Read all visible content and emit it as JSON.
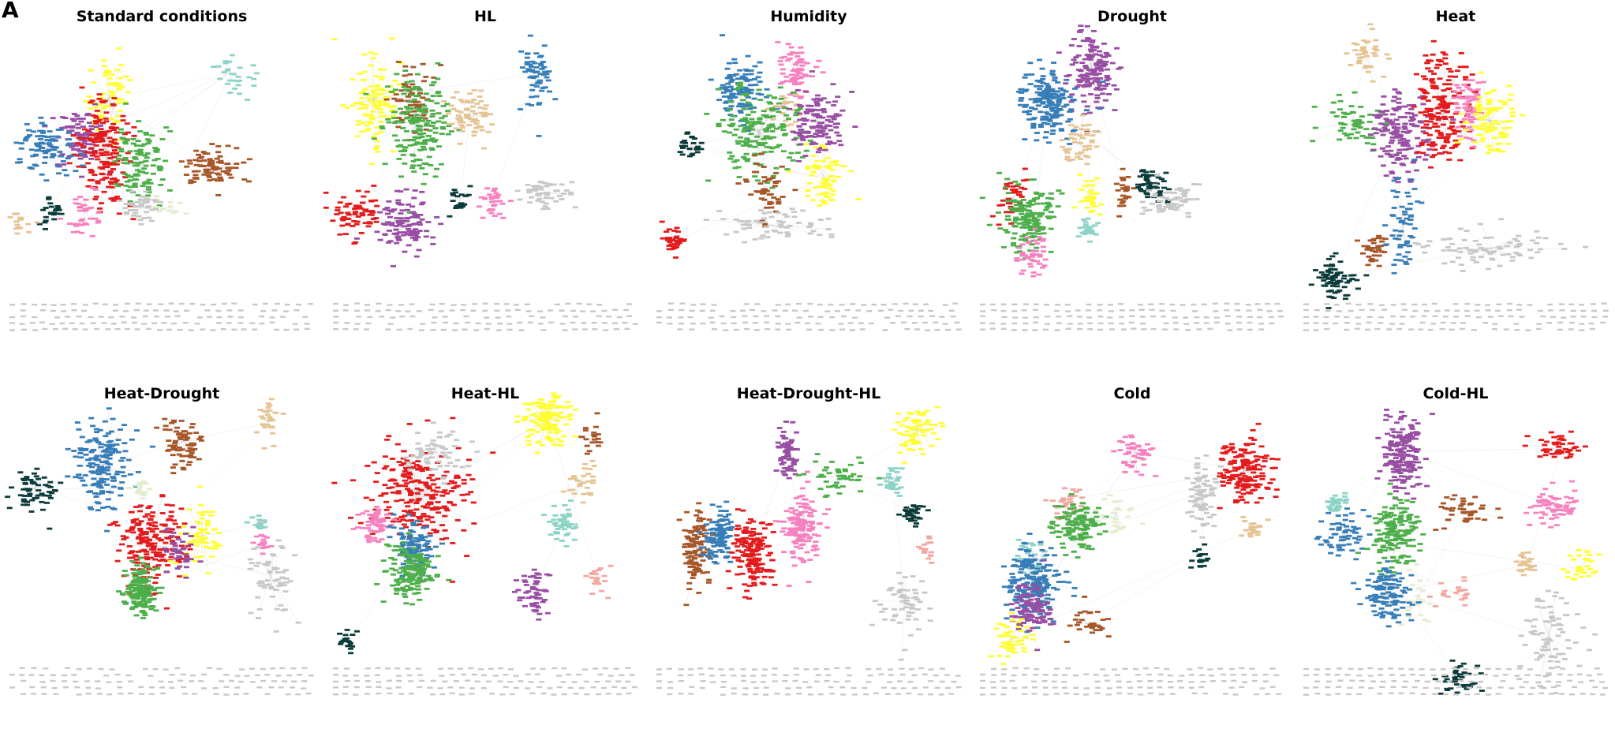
{
  "figure": {
    "panel_label": "A",
    "type": "network-graph-grid",
    "node_color_palette": {
      "red": "#e41a1c",
      "blue": "#377eb8",
      "green": "#4daf4a",
      "purple": "#984ea3",
      "brown": "#a65628",
      "yellow": "#ffff33",
      "pink": "#f781bf",
      "tan": "#e5c494",
      "teal": "#8dd3c7",
      "dark-teal": "#0b3b3a",
      "salmon": "#f4a6a0",
      "pale-green": "#e3eed0",
      "gray": "#c8c8c8",
      "edge": "#c8c8c8"
    }
  },
  "panels": [
    {
      "title": "Standard conditions",
      "clusters": [
        "yellow",
        "teal",
        "purple",
        "red",
        "blue",
        "green",
        "brown",
        "dark-teal",
        "pink",
        "tan",
        "pale-green",
        "gray"
      ]
    },
    {
      "title": "HL",
      "clusters": [
        "yellow",
        "brown",
        "green",
        "tan",
        "blue",
        "red",
        "purple",
        "dark-teal",
        "pink",
        "gray"
      ]
    },
    {
      "title": "Humidity",
      "clusters": [
        "blue",
        "pink",
        "tan",
        "green",
        "purple",
        "dark-teal",
        "yellow",
        "brown",
        "red",
        "gray"
      ]
    },
    {
      "title": "Drought",
      "clusters": [
        "purple",
        "blue",
        "tan",
        "red",
        "green",
        "yellow",
        "brown",
        "dark-teal",
        "teal",
        "pink",
        "gray"
      ]
    },
    {
      "title": "Heat",
      "clusters": [
        "tan",
        "green",
        "purple",
        "red",
        "pink",
        "yellow",
        "blue",
        "brown",
        "dark-teal",
        "gray"
      ]
    },
    {
      "title": "Heat-Drought",
      "clusters": [
        "blue",
        "dark-teal",
        "brown",
        "tan",
        "pale-green",
        "red",
        "yellow",
        "purple",
        "green",
        "teal",
        "pink",
        "gray"
      ]
    },
    {
      "title": "Heat-HL",
      "clusters": [
        "yellow",
        "brown",
        "red",
        "pink",
        "blue",
        "green",
        "tan",
        "teal",
        "purple",
        "salmon",
        "dark-teal",
        "gray"
      ]
    },
    {
      "title": "Heat-Drought-HL",
      "clusters": [
        "purple",
        "green",
        "yellow",
        "teal",
        "pink",
        "brown",
        "blue",
        "red",
        "dark-teal",
        "salmon",
        "gray"
      ]
    },
    {
      "title": "Cold",
      "clusters": [
        "pink",
        "red",
        "salmon",
        "green",
        "pale-green",
        "teal",
        "blue",
        "purple",
        "yellow",
        "brown",
        "tan",
        "dark-teal",
        "gray"
      ]
    },
    {
      "title": "Cold-HL",
      "clusters": [
        "purple",
        "teal",
        "blue",
        "green",
        "brown",
        "red",
        "pink",
        "tan",
        "yellow",
        "salmon",
        "pale-green",
        "dark-teal",
        "gray"
      ]
    }
  ]
}
